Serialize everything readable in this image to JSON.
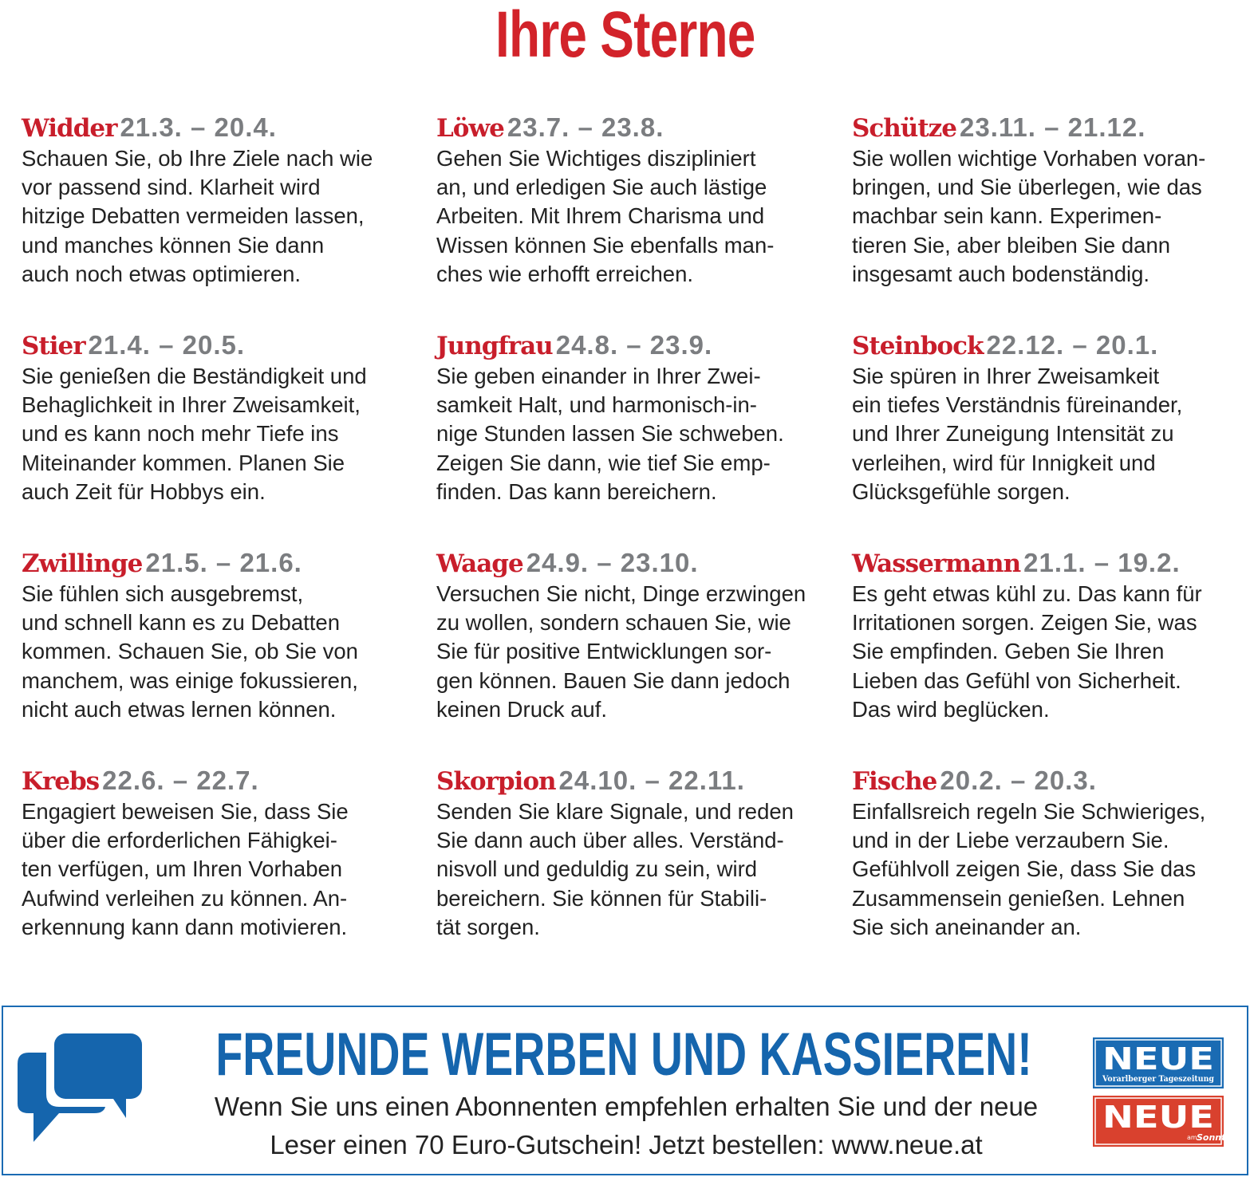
{
  "title": "Ihre Sterne",
  "signs": [
    {
      "name": "Widder",
      "date": "21.3. – 20.4.",
      "text": "Schauen Sie, ob Ihre Ziele nach wie\nvor passend sind. Klarheit wird\nhitzige Debatten vermeiden lassen,\nund manches können Sie dann\nauch noch etwas optimieren."
    },
    {
      "name": "Stier",
      "date": "21.4. – 20.5.",
      "text": "Sie genießen die Beständigkeit und\nBehaglichkeit in Ihrer Zweisamkeit,\nund es kann noch mehr Tiefe ins\nMiteinander kommen. Planen Sie\nauch Zeit für Hobbys ein."
    },
    {
      "name": "Zwillinge",
      "date": "21.5. – 21.6.",
      "text": "Sie fühlen sich ausgebremst,\nund schnell kann es zu Debatten\nkommen. Schauen Sie, ob Sie von\nmanchem, was einige fokussieren,\nnicht auch etwas lernen können."
    },
    {
      "name": "Krebs",
      "date": "22.6. – 22.7.",
      "text": "Engagiert beweisen Sie, dass Sie\nüber die erforderlichen Fähigkei-\nten verfügen, um Ihren Vorhaben\nAufwind verleihen zu können. An-\nerkennung kann dann motivieren."
    },
    {
      "name": "Löwe",
      "date": "23.7. – 23.8.",
      "text": "Gehen Sie Wichtiges diszipliniert\nan, und erledigen Sie auch lästige\nArbeiten. Mit Ihrem Charisma und\nWissen können Sie ebenfalls man-\nches wie erhofft erreichen."
    },
    {
      "name": "Jungfrau",
      "date": "24.8. – 23.9.",
      "text": "Sie geben einander in Ihrer Zwei-\nsamkeit Halt, und harmonisch-in-\nnige Stunden lassen Sie schweben.\nZeigen Sie dann, wie tief Sie emp-\nfinden. Das kann bereichern."
    },
    {
      "name": "Waage",
      "date": "24.9. – 23.10.",
      "text": "Versuchen Sie nicht, Dinge erzwingen\nzu wollen, sondern schauen Sie, wie\nSie für positive Entwicklungen sor-\ngen können. Bauen Sie dann jedoch\nkeinen Druck auf."
    },
    {
      "name": "Skorpion",
      "date": "24.10. – 22.11.",
      "text": "Senden Sie klare Signale, und reden\nSie dann auch über alles. Verständ-\nnisvoll und geduldig zu sein, wird\nbereichern. Sie können für Stabili-\ntät sorgen."
    },
    {
      "name": "Schütze",
      "date": "23.11. – 21.12.",
      "text": "Sie wollen wichtige Vorhaben voran-\nbringen, und Sie überlegen, wie das\nmachbar sein kann. Experimen-\ntieren Sie, aber bleiben Sie dann\ninsgesamt auch bodenständig."
    },
    {
      "name": "Steinbock",
      "date": "22.12. – 20.1.",
      "text": "Sie spüren in Ihrer Zweisamkeit\nein tiefes Verständnis füreinander,\nund Ihrer Zuneigung Intensität zu\nverleihen, wird für Innigkeit und\nGlücksgefühle sorgen."
    },
    {
      "name": "Wassermann",
      "date": "21.1. – 19.2.",
      "text": "Es geht etwas kühl zu. Das kann für\nIrritationen sorgen. Zeigen Sie, was\nSie empfinden. Geben Sie Ihren\nLieben das Gefühl von Sicherheit.\nDas wird beglücken."
    },
    {
      "name": "Fische",
      "date": "20.2. – 20.3.",
      "text": "Einfallsreich regeln Sie Schwieriges,\nund in der Liebe verzaubern Sie.\nGefühlvoll zeigen Sie, dass Sie das\nZusammensein genießen. Lehnen\nSie sich aneinander an."
    }
  ],
  "banner": {
    "icon": "chat-bubbles-icon",
    "headline": "FREUNDE WERBEN UND KASSIEREN!",
    "line1": "Wenn Sie uns einen Abonnenten empfehlen erhalten Sie und der neue",
    "line2": "Leser einen 70 Euro-Gutschein! Jetzt bestellen: www.neue.at",
    "logo1": {
      "name": "NEUE",
      "sub": "Vorarlberger Tageszeitung",
      "color": "#1a6bb3"
    },
    "logo2": {
      "name": "NEUE",
      "sub_small": "am",
      "sub": "Sonntag",
      "color": "#d9412e"
    }
  },
  "colors": {
    "accent": "#c81e2b",
    "date": "#7b7d80",
    "banner_blue": "#1565ad"
  }
}
